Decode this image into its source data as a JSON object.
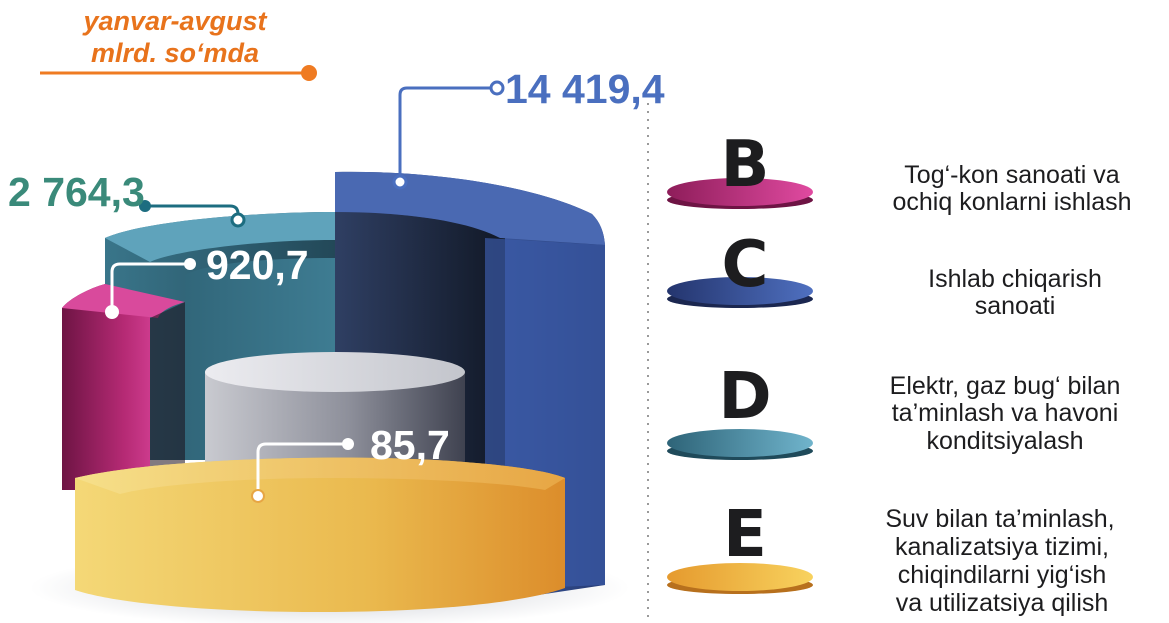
{
  "header": {
    "line1": "yanvar-avgust",
    "line2": "mlrd. so‘mda"
  },
  "chart_data": {
    "type": "bar",
    "categories": [
      "B",
      "C",
      "D",
      "E"
    ],
    "values": [
      920.7,
      14419.4,
      2764.3,
      85.7
    ],
    "value_labels": [
      "920,7",
      "14 419,4",
      "2 764,3",
      "85,7"
    ],
    "unit": "mlrd. so‘m",
    "period": "yanvar-avgust",
    "legend_position": "right",
    "colors": {
      "B": "#c2327e",
      "C": "#3b5596",
      "D": "#4a8ca4",
      "E": "#e9a53a",
      "core": "#a3a4ad"
    }
  },
  "legend": [
    {
      "letter": "B",
      "lines": [
        "Tog‘-kon sanoati va",
        "ochiq konlarni ishlash"
      ]
    },
    {
      "letter": "C",
      "lines": [
        "Ishlab chiqarish",
        "sanoati"
      ]
    },
    {
      "letter": "D",
      "lines": [
        "Elektr, gaz bug‘ bilan",
        "ta’minlash va havoni",
        "konditsiyalash"
      ]
    },
    {
      "letter": "E",
      "lines": [
        "Suv bilan ta’minlash,",
        "kanalizatsiya tizimi,",
        "chiqindilarni yig‘ish",
        "va utilizatsiya qilish"
      ]
    }
  ]
}
